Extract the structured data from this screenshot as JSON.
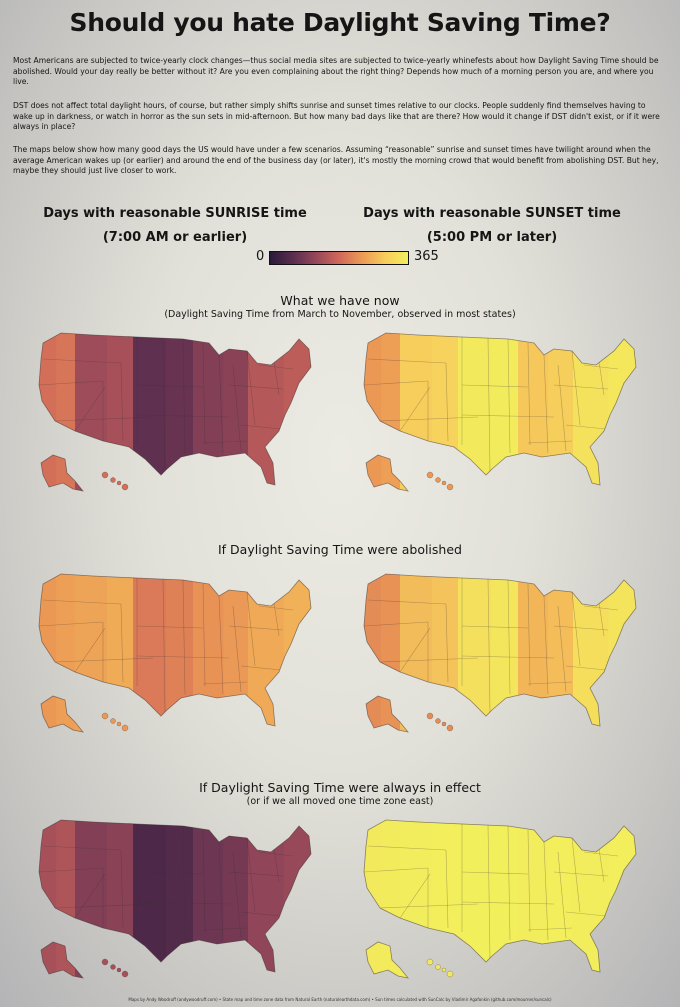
{
  "title": "Should you hate Daylight Saving Time?",
  "intro": [
    "Most Americans are subjected to twice-yearly clock changes—thus social media sites are subjected to twice-yearly whinefests about how Daylight Saving Time should be abolished. Would your day really be better without it? Are you even complaining about the right thing? Depends how much of a morning person you are, and where you live.",
    "DST does not affect total daylight hours, of course, but rather simply shifts sunrise and sunset times relative to our clocks. People suddenly find themselves having to wake up in darkness, or watch in horror as the sun sets in mid-afternoon. But how many bad days like that are there? How would it change if DST didn't exist, or if it were always in place?",
    "The maps below show how many good days the US would have under a few scenarios. Assuming “reasonable” sunrise and sunset times have twilight around when the average American wakes up (or earlier) and around the end of the business day (or later), it's mostly the morning crowd that would benefit from abolishing DST. But hey, maybe they should just live closer to work."
  ],
  "headers": {
    "sunrise_line1": "Days with reasonable SUNRISE time",
    "sunrise_line2": "(7:00 AM or earlier)",
    "sunset_line1": "Days with reasonable SUNSET time",
    "sunset_line2": "(5:00 PM or later)"
  },
  "legend": {
    "min_label": "0",
    "max_label": "365",
    "min_value": 0,
    "max_value": 365,
    "colors": [
      "#2b1a3a",
      "#5a2e4e",
      "#95475a",
      "#d0685a",
      "#ec9a55",
      "#f7cc5c",
      "#f2ef5c"
    ]
  },
  "sections": [
    {
      "title": "What we have now",
      "subtitle": "(Daylight Saving Time from March to November, observed in most states)",
      "sunrise_bands": [
        0.52,
        0.36,
        0.18,
        0.28,
        0.42
      ],
      "sunset_bands": [
        0.66,
        0.84,
        0.97,
        0.82,
        0.94
      ]
    },
    {
      "title": "If Daylight Saving Time were abolished",
      "subtitle": "",
      "sunrise_bands": [
        0.66,
        0.7,
        0.56,
        0.64,
        0.72
      ],
      "sunset_bands": [
        0.62,
        0.78,
        0.93,
        0.76,
        0.92
      ]
    },
    {
      "title": "If Daylight Saving Time were always in effect",
      "subtitle": "(or if we all moved one time zone east)",
      "sunrise_bands": [
        0.38,
        0.28,
        0.12,
        0.22,
        0.32
      ],
      "sunset_bands": [
        0.97,
        0.99,
        1.0,
        0.99,
        0.99
      ]
    }
  ],
  "credits": "Maps by Andy Woodruff (andywoodruff.com) • State map and time zone data from Natural Earth (naturalearthdata.com) • Sun times calculated with SunCalc by Vladimir Agafonkin (github.com/mourner/suncalc)"
}
